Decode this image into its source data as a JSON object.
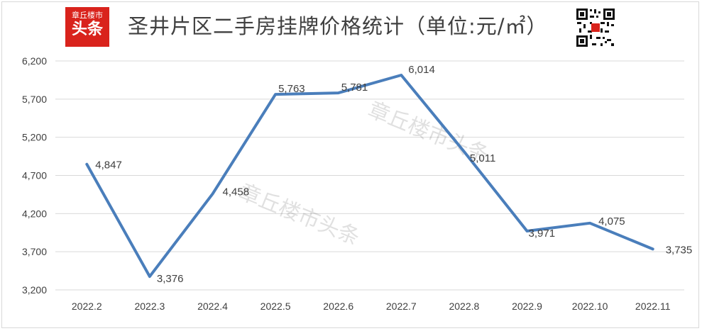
{
  "header": {
    "title": "圣井片区二手房挂牌价格统计（单位:元/㎡）",
    "logo_line1": "章丘楼市",
    "logo_line2": "头条"
  },
  "watermark": "章丘楼市头条",
  "colors": {
    "line": "#4a7ebb",
    "grid": "#d9d9d9",
    "logo": "#d9231c",
    "text": "#404040"
  },
  "chart_data": {
    "type": "line",
    "title": "圣井片区二手房挂牌价格统计（单位:元/㎡）",
    "categories": [
      "2022.2",
      "2022.3",
      "2022.4",
      "2022.5",
      "2022.6",
      "2022.7",
      "2022.8",
      "2022.9",
      "2022.10",
      "2022.11"
    ],
    "values": [
      4847,
      3376,
      4458,
      5763,
      5781,
      6014,
      5011,
      3971,
      4075,
      3735
    ],
    "data_labels": [
      "4,847",
      "3,376",
      "4,458",
      "5,763",
      "5,781",
      "6,014",
      "5,011",
      "3,971",
      "4,075",
      "3,735"
    ],
    "yticks": [
      3200,
      3700,
      4200,
      4700,
      5200,
      5700,
      6200
    ],
    "ytick_labels": [
      "3,200",
      "3,700",
      "4,200",
      "4,700",
      "5,200",
      "5,700",
      "6,200"
    ],
    "ylim": [
      3200,
      6200
    ],
    "grid": true,
    "legend": "none"
  }
}
